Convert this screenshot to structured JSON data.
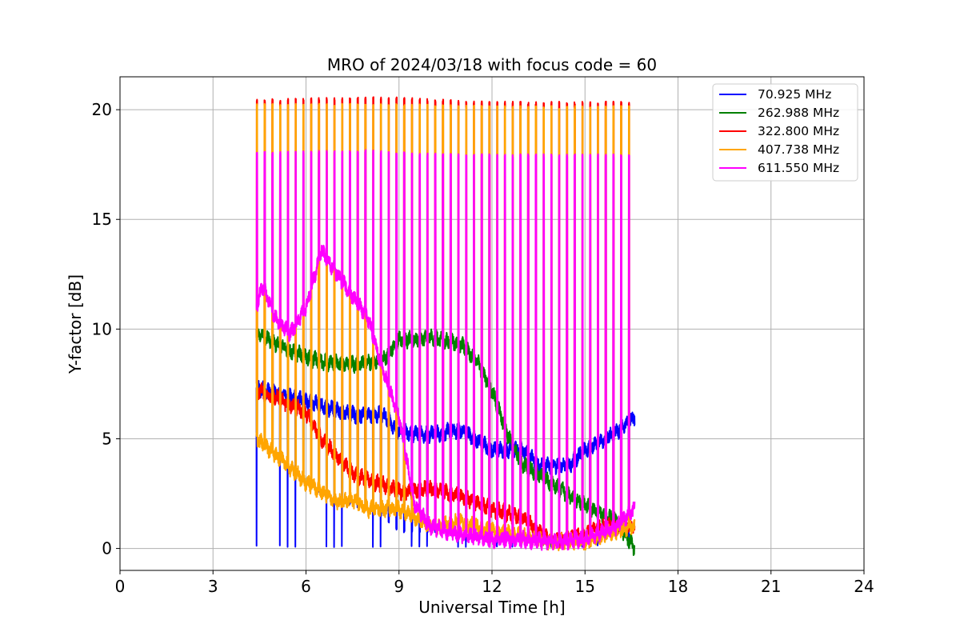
{
  "chart_data": {
    "type": "line",
    "title": "MRO of 2024/03/18 with focus code = 60",
    "xlabel": "Universal Time [h]",
    "ylabel": "Y-factor [dB]",
    "xlim": [
      0,
      24
    ],
    "ylim": [
      -1,
      21.5
    ],
    "xticks": [
      0,
      3,
      6,
      9,
      12,
      15,
      18,
      21,
      24
    ],
    "yticks": [
      0,
      5,
      10,
      15,
      20
    ],
    "grid": true,
    "legend_position": "top-right",
    "x_start": 4.4,
    "x_end": 16.6,
    "cycle_hours": 0.25,
    "series": [
      {
        "name": "70.925 MHz",
        "color": "#0000ff",
        "baseline": [
          [
            4.4,
            7.3
          ],
          [
            5.5,
            6.9
          ],
          [
            6.5,
            6.5
          ],
          [
            7.5,
            6.1
          ],
          [
            8.5,
            6.1
          ],
          [
            9.0,
            5.3
          ],
          [
            10.0,
            5.2
          ],
          [
            11.0,
            5.4
          ],
          [
            12.0,
            4.5
          ],
          [
            13.0,
            4.5
          ],
          [
            13.5,
            3.8
          ],
          [
            14.5,
            3.8
          ],
          [
            15.0,
            4.5
          ],
          [
            16.0,
            5.3
          ],
          [
            16.6,
            6.0
          ]
        ],
        "low": [
          [
            4.4,
            0.1
          ],
          [
            8.5,
            0.1
          ],
          [
            16.6,
            0.1
          ]
        ],
        "high": [
          [
            4.4,
            4.8
          ],
          [
            5.5,
            4.2
          ],
          [
            6.5,
            2.5
          ],
          [
            8.5,
            1.5
          ],
          [
            9.0,
            0.8
          ],
          [
            16.6,
            0.8
          ]
        ]
      },
      {
        "name": "262.988 MHz",
        "color": "#008000",
        "baseline": [
          [
            4.4,
            9.8
          ],
          [
            5.5,
            9.0
          ],
          [
            6.5,
            8.5
          ],
          [
            7.5,
            8.4
          ],
          [
            8.5,
            8.6
          ],
          [
            9.0,
            9.5
          ],
          [
            10.0,
            9.6
          ],
          [
            11.0,
            9.3
          ],
          [
            11.5,
            8.6
          ],
          [
            12.0,
            7.2
          ],
          [
            12.5,
            5.2
          ],
          [
            13.0,
            3.8
          ],
          [
            13.5,
            3.4
          ],
          [
            14.0,
            2.9
          ],
          [
            14.5,
            2.4
          ],
          [
            15.0,
            2.0
          ],
          [
            15.5,
            1.6
          ],
          [
            16.0,
            1.3
          ],
          [
            16.6,
            0.0
          ]
        ]
      },
      {
        "name": "322.800 MHz",
        "color": "#ff0000",
        "baseline": [
          [
            4.4,
            7.2
          ],
          [
            5.0,
            6.9
          ],
          [
            6.0,
            6.2
          ],
          [
            6.5,
            5.0
          ],
          [
            7.0,
            4.2
          ],
          [
            7.5,
            3.4
          ],
          [
            8.0,
            3.1
          ],
          [
            8.5,
            2.9
          ],
          [
            9.0,
            2.6
          ],
          [
            10.0,
            2.7
          ],
          [
            11.0,
            2.4
          ],
          [
            12.0,
            1.8
          ],
          [
            12.5,
            1.6
          ],
          [
            13.0,
            1.4
          ],
          [
            13.5,
            0.8
          ],
          [
            14.0,
            0.3
          ],
          [
            14.5,
            0.5
          ],
          [
            15.0,
            0.6
          ],
          [
            15.5,
            1.0
          ],
          [
            16.6,
            1.0
          ]
        ],
        "high": [
          [
            4.4,
            20.4
          ],
          [
            7.5,
            20.5
          ],
          [
            9.0,
            20.5
          ],
          [
            12.0,
            20.3
          ],
          [
            16.6,
            20.3
          ]
        ]
      },
      {
        "name": "407.738 MHz",
        "color": "#ffa500",
        "baseline": [
          [
            4.4,
            5.0
          ],
          [
            5.0,
            4.3
          ],
          [
            6.0,
            3.0
          ],
          [
            6.5,
            2.6
          ],
          [
            7.0,
            2.1
          ],
          [
            7.5,
            2.2
          ],
          [
            8.0,
            1.8
          ],
          [
            9.0,
            1.8
          ],
          [
            9.5,
            1.4
          ],
          [
            10.0,
            1.0
          ],
          [
            11.0,
            1.2
          ],
          [
            12.0,
            0.8
          ],
          [
            12.5,
            0.7
          ],
          [
            13.0,
            0.6
          ],
          [
            13.5,
            0.4
          ],
          [
            14.0,
            0.3
          ],
          [
            15.0,
            0.3
          ],
          [
            16.0,
            0.8
          ],
          [
            16.6,
            1.0
          ]
        ],
        "high": [
          [
            4.4,
            20.2
          ],
          [
            9.0,
            20.2
          ],
          [
            12.0,
            20.1
          ],
          [
            16.6,
            20.1
          ]
        ]
      },
      {
        "name": "611.550 MHz",
        "color": "#ff00ff",
        "baseline": [
          [
            4.4,
            11.0
          ],
          [
            4.6,
            12.0
          ],
          [
            5.0,
            10.5
          ],
          [
            5.5,
            9.8
          ],
          [
            6.0,
            11.0
          ],
          [
            6.5,
            13.6
          ],
          [
            7.0,
            12.5
          ],
          [
            7.5,
            11.5
          ],
          [
            8.0,
            10.5
          ],
          [
            8.5,
            8.0
          ],
          [
            9.0,
            6.0
          ],
          [
            9.5,
            2.0
          ],
          [
            10.0,
            1.0
          ],
          [
            11.0,
            0.6
          ],
          [
            12.0,
            0.4
          ],
          [
            13.0,
            0.4
          ],
          [
            14.0,
            0.3
          ],
          [
            15.0,
            0.4
          ],
          [
            16.0,
            1.0
          ],
          [
            16.6,
            1.8
          ]
        ],
        "high": [
          [
            4.4,
            18.0
          ],
          [
            8.0,
            18.1
          ],
          [
            9.0,
            18.0
          ],
          [
            12.0,
            17.9
          ],
          [
            16.6,
            17.9
          ]
        ]
      }
    ]
  }
}
